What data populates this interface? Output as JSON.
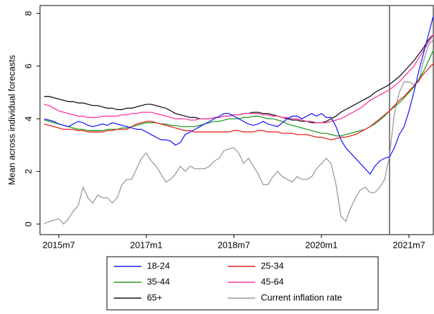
{
  "chart_data": {
    "type": "line",
    "y_label": "Mean across individual forecasts",
    "x": [
      "2015m4",
      "2015m5",
      "2015m6",
      "2015m7",
      "2015m8",
      "2015m9",
      "2015m10",
      "2015m11",
      "2015m12",
      "2016m1",
      "2016m2",
      "2016m3",
      "2016m4",
      "2016m5",
      "2016m6",
      "2016m7",
      "2016m8",
      "2016m9",
      "2016m10",
      "2016m11",
      "2016m12",
      "2017m1",
      "2017m2",
      "2017m3",
      "2017m4",
      "2017m5",
      "2017m6",
      "2017m7",
      "2017m8",
      "2017m9",
      "2017m10",
      "2017m11",
      "2017m12",
      "2018m1",
      "2018m2",
      "2018m3",
      "2018m4",
      "2018m5",
      "2018m6",
      "2018m7",
      "2018m8",
      "2018m9",
      "2018m10",
      "2018m11",
      "2018m12",
      "2019m1",
      "2019m2",
      "2019m3",
      "2019m4",
      "2019m5",
      "2019m6",
      "2019m7",
      "2019m8",
      "2019m9",
      "2019m10",
      "2019m11",
      "2019m12",
      "2020m1",
      "2020m2",
      "2020m3",
      "2020m4",
      "2020m5",
      "2020m6",
      "2020m7",
      "2020m8",
      "2020m9",
      "2020m10",
      "2020m11",
      "2020m12",
      "2021m1",
      "2021m2",
      "2021m3",
      "2021m4",
      "2021m5",
      "2021m6",
      "2021m7",
      "2021m8",
      "2021m9",
      "2021m10",
      "2021m11",
      "2021m12"
    ],
    "xticks": [
      "2015m7",
      "2017m1",
      "2018m7",
      "2020m1",
      "2021m7"
    ],
    "ylim": [
      -0.4,
      8.3
    ],
    "yticks": [
      0,
      2,
      4,
      6,
      8
    ],
    "vline": "2021m3",
    "series": [
      {
        "name": "18-24",
        "color": "#1a1aff",
        "values": [
          4.0,
          3.95,
          3.9,
          3.8,
          3.75,
          3.7,
          3.8,
          3.9,
          3.85,
          3.75,
          3.7,
          3.75,
          3.8,
          3.75,
          3.85,
          3.8,
          3.75,
          3.7,
          3.65,
          3.6,
          3.6,
          3.5,
          3.4,
          3.3,
          3.2,
          3.2,
          3.15,
          3.0,
          3.1,
          3.4,
          3.5,
          3.6,
          3.7,
          3.8,
          3.9,
          4.0,
          4.1,
          4.2,
          4.2,
          4.1,
          4.0,
          3.9,
          3.8,
          3.75,
          3.8,
          3.9,
          3.8,
          3.75,
          3.7,
          3.85,
          4.0,
          4.1,
          4.1,
          4.0,
          4.1,
          4.2,
          4.1,
          4.2,
          4.05,
          4.05,
          3.7,
          3.2,
          2.9,
          2.7,
          2.5,
          2.3,
          2.1,
          1.9,
          2.2,
          2.4,
          2.5,
          2.55,
          2.9,
          3.4,
          3.7,
          4.3,
          5.0,
          5.8,
          6.5,
          7.2,
          7.9
        ]
      },
      {
        "name": "25-34",
        "color": "#e8201e",
        "values": [
          3.8,
          3.75,
          3.7,
          3.65,
          3.6,
          3.6,
          3.6,
          3.55,
          3.55,
          3.5,
          3.5,
          3.5,
          3.5,
          3.55,
          3.55,
          3.6,
          3.6,
          3.6,
          3.7,
          3.8,
          3.85,
          3.9,
          3.9,
          3.85,
          3.8,
          3.75,
          3.7,
          3.65,
          3.6,
          3.55,
          3.55,
          3.5,
          3.5,
          3.5,
          3.5,
          3.5,
          3.5,
          3.5,
          3.5,
          3.55,
          3.55,
          3.5,
          3.5,
          3.5,
          3.55,
          3.55,
          3.5,
          3.5,
          3.5,
          3.45,
          3.45,
          3.45,
          3.4,
          3.4,
          3.4,
          3.35,
          3.3,
          3.3,
          3.25,
          3.2,
          3.25,
          3.3,
          3.3,
          3.35,
          3.4,
          3.5,
          3.6,
          3.7,
          3.85,
          4.0,
          4.15,
          4.3,
          4.5,
          4.7,
          4.85,
          5.05,
          5.25,
          5.45,
          5.7,
          5.9,
          6.1
        ]
      },
      {
        "name": "35-44",
        "color": "#1f9a1f",
        "values": [
          3.95,
          3.9,
          3.85,
          3.8,
          3.75,
          3.7,
          3.65,
          3.6,
          3.6,
          3.55,
          3.55,
          3.55,
          3.55,
          3.6,
          3.6,
          3.6,
          3.65,
          3.65,
          3.7,
          3.75,
          3.8,
          3.85,
          3.85,
          3.85,
          3.8,
          3.8,
          3.75,
          3.75,
          3.7,
          3.7,
          3.7,
          3.7,
          3.75,
          3.8,
          3.85,
          3.9,
          3.9,
          3.95,
          4.0,
          4.0,
          4.0,
          4.05,
          4.05,
          4.1,
          4.1,
          4.05,
          4.0,
          4.0,
          3.95,
          3.9,
          3.8,
          3.75,
          3.7,
          3.65,
          3.6,
          3.55,
          3.5,
          3.45,
          3.45,
          3.4,
          3.35,
          3.35,
          3.4,
          3.45,
          3.5,
          3.55,
          3.6,
          3.7,
          3.8,
          3.95,
          4.1,
          4.3,
          4.45,
          4.6,
          4.8,
          5.0,
          5.2,
          5.5,
          5.8,
          6.2,
          6.6
        ]
      },
      {
        "name": "45-64",
        "color": "#ff3399",
        "values": [
          4.55,
          4.5,
          4.4,
          4.3,
          4.25,
          4.2,
          4.15,
          4.1,
          4.1,
          4.05,
          4.05,
          4.05,
          4.1,
          4.1,
          4.1,
          4.1,
          4.15,
          4.15,
          4.2,
          4.2,
          4.25,
          4.25,
          4.25,
          4.2,
          4.15,
          4.1,
          4.05,
          4.0,
          4.0,
          4.0,
          3.95,
          3.95,
          4.0,
          4.0,
          4.0,
          4.05,
          4.05,
          4.1,
          4.1,
          4.15,
          4.15,
          4.2,
          4.2,
          4.2,
          4.2,
          4.15,
          4.15,
          4.1,
          4.1,
          4.05,
          4.05,
          4.0,
          4.0,
          3.95,
          3.9,
          3.9,
          3.85,
          3.85,
          3.85,
          3.9,
          3.95,
          4.0,
          4.1,
          4.2,
          4.3,
          4.4,
          4.55,
          4.7,
          4.8,
          4.9,
          5.0,
          5.1,
          5.25,
          5.4,
          5.6,
          5.8,
          6.0,
          6.3,
          6.6,
          6.9,
          7.2
        ]
      },
      {
        "name": "65+",
        "color": "#111111",
        "values": [
          4.85,
          4.85,
          4.8,
          4.75,
          4.7,
          4.65,
          4.65,
          4.6,
          4.6,
          4.55,
          4.5,
          4.5,
          4.45,
          4.4,
          4.4,
          4.35,
          4.35,
          4.4,
          4.4,
          4.45,
          4.5,
          4.55,
          4.55,
          4.5,
          4.45,
          4.4,
          4.3,
          4.2,
          4.15,
          4.1,
          4.05,
          4.05,
          4.0,
          4.0,
          4.0,
          4.05,
          4.05,
          4.1,
          4.1,
          4.15,
          4.15,
          4.2,
          4.2,
          4.25,
          4.25,
          4.2,
          4.2,
          4.15,
          4.1,
          4.05,
          4.0,
          3.95,
          3.95,
          3.9,
          3.9,
          3.85,
          3.85,
          3.85,
          3.9,
          4.0,
          4.1,
          4.25,
          4.35,
          4.45,
          4.55,
          4.65,
          4.75,
          4.85,
          5.0,
          5.1,
          5.2,
          5.3,
          5.45,
          5.6,
          5.8,
          6.0,
          6.2,
          6.45,
          6.7,
          7.0,
          7.2
        ]
      },
      {
        "name": "Current inflation rate",
        "color": "#999999",
        "values": [
          0,
          0.1,
          0.15,
          0.2,
          0,
          0.2,
          0.5,
          0.7,
          1.4,
          1.0,
          0.8,
          1.1,
          1.0,
          1.0,
          0.8,
          1.0,
          1.5,
          1.7,
          1.7,
          2.1,
          2.5,
          2.7,
          2.4,
          2.2,
          1.9,
          1.6,
          1.7,
          1.9,
          2.2,
          2.0,
          2.2,
          2.1,
          2.1,
          2.1,
          2.2,
          2.4,
          2.5,
          2.8,
          2.85,
          2.9,
          2.7,
          2.3,
          2.5,
          2.2,
          1.9,
          1.5,
          1.5,
          1.8,
          2.0,
          1.8,
          1.7,
          1.6,
          1.8,
          1.7,
          1.7,
          1.8,
          2.1,
          2.3,
          2.5,
          2.3,
          1.5,
          0.3,
          0.1,
          0.6,
          1.0,
          1.3,
          1.4,
          1.2,
          1.2,
          1.4,
          1.7,
          2.6,
          4.2,
          5.0,
          5.4,
          5.4,
          5.3,
          5.4,
          6.2,
          6.8,
          7.0
        ]
      }
    ]
  }
}
